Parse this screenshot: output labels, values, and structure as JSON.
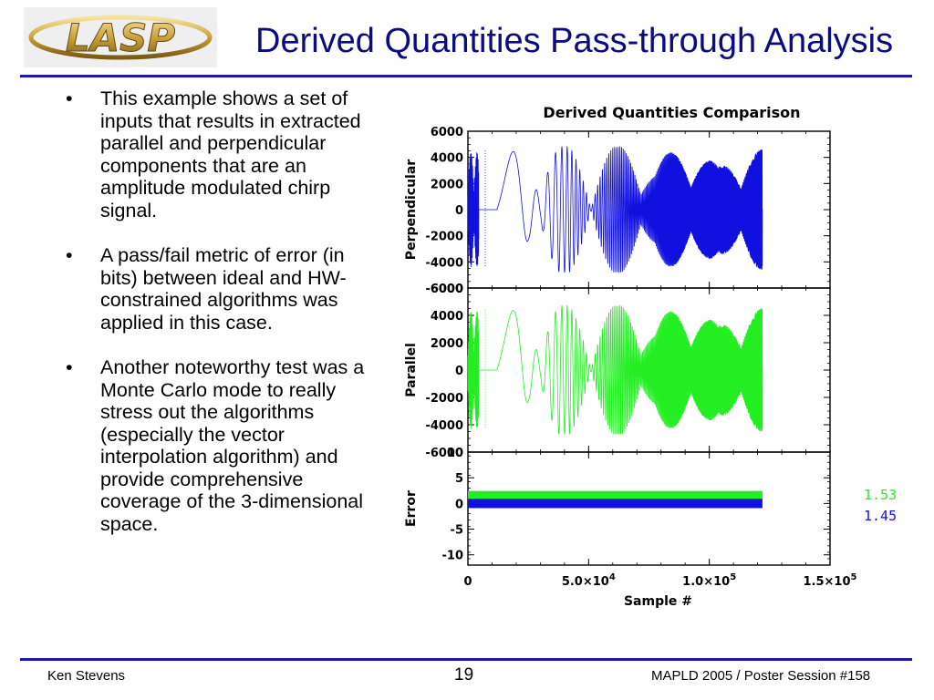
{
  "header": {
    "title": "Derived Quantities Pass-through Analysis",
    "logo_text": "LASP"
  },
  "bullets": [
    "This example shows a set of inputs that results in extracted parallel and perpendicular components that are an amplitude modulated chirp signal.",
    "A pass/fail metric of error (in bits) between ideal and HW-constrained algorithms was applied in this case.",
    "Another noteworthy test was a Monte Carlo mode to really stress out the algorithms (especially the vector interpolation algorithm) and provide comprehensive coverage of the 3-dimensional space."
  ],
  "bullet_glyph": "•",
  "footer": {
    "left": "Ken Stevens",
    "page": "19",
    "right": "MAPLD 2005 / Poster Session #158"
  },
  "chart_data": {
    "type": "line",
    "title": "Derived Quantities Comparison",
    "xlabel": "Sample #",
    "xlim": [
      0,
      150000
    ],
    "x_ticks": [
      0,
      50000,
      100000,
      150000
    ],
    "x_tick_labels": [
      {
        "base": "0",
        "exp": ""
      },
      {
        "base": "5.0×10",
        "exp": "4"
      },
      {
        "base": "1.0×10",
        "exp": "5"
      },
      {
        "base": "1.5×10",
        "exp": "5"
      }
    ],
    "panels": [
      {
        "ylabel": "Perpendicular",
        "ylim": [
          -6000,
          6000
        ],
        "y_ticks": [
          6000,
          4000,
          2000,
          0,
          -2000,
          -4000,
          -6000
        ],
        "y_tick_labels": [
          "6000",
          "4000",
          "2000",
          "0",
          "-2000",
          "-4000",
          "-6000"
        ],
        "color": "#1010e0",
        "amplitude": 4800
      },
      {
        "ylabel": "Parallel",
        "ylim": [
          -6000,
          6000
        ],
        "y_ticks": [
          6000,
          4000,
          2000,
          0,
          -2000,
          -4000,
          -6000
        ],
        "y_tick_labels": [
          "6000",
          "4000",
          "2000",
          "0",
          "-2000",
          "-4000",
          "-6000"
        ],
        "color": "#22ee22",
        "amplitude": 4700
      },
      {
        "ylabel": "Error",
        "ylim": [
          -12,
          10
        ],
        "y_ticks": [
          10,
          5,
          0,
          -5,
          -10
        ],
        "y_tick_labels": [
          "10",
          "5",
          "0",
          "-5",
          "-10"
        ]
      }
    ],
    "error_series": [
      {
        "name": "1.53",
        "color": "#22ee22",
        "mean": 1.53,
        "x_end": 122000
      },
      {
        "name": "1.45",
        "color": "#1010e0",
        "mean": 0,
        "x_end": 122000
      }
    ]
  }
}
